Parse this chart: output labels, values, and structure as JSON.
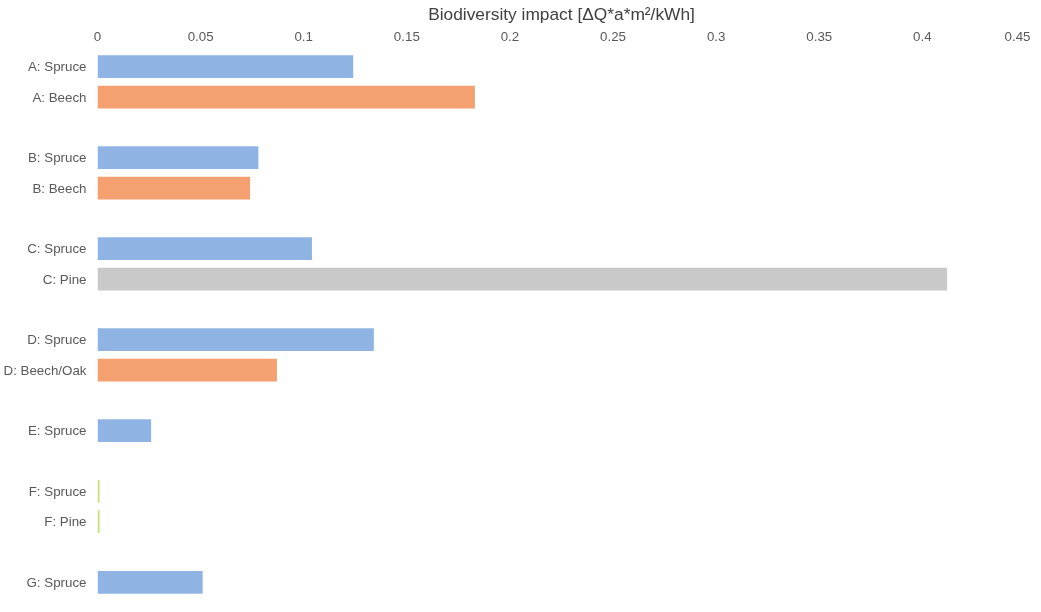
{
  "chart_data": {
    "type": "bar",
    "orientation": "horizontal",
    "xlabel": "Biodiversity impact [ΔQ*a*m²/kWh]",
    "categories": [
      "A: Spruce",
      "A: Beech",
      null,
      "B: Spruce",
      "B: Beech",
      null,
      "C: Spruce",
      "C: Pine",
      null,
      "D: Spruce",
      "D: Beech/Oak",
      null,
      "E: Spruce",
      null,
      "F: Spruce",
      "F: Pine",
      null,
      "G: Spruce"
    ],
    "values": [
      0.124,
      0.183,
      null,
      0.078,
      0.074,
      null,
      0.104,
      0.412,
      null,
      0.134,
      0.087,
      null,
      0.026,
      null,
      0.001,
      0.001,
      null,
      0.051
    ],
    "colors": [
      "#8fb4e3",
      "#f4a070",
      null,
      "#8fb4e3",
      "#f4a070",
      null,
      "#8fb4e3",
      "#c9c9c9",
      null,
      "#8fb4e3",
      "#f4a070",
      null,
      "#8fb4e3",
      null,
      "#c5e07a",
      "#c5e07a",
      null,
      "#8fb4e3"
    ],
    "xlim": [
      0,
      0.45
    ],
    "xticks": [
      0,
      0.05,
      0.1,
      0.15,
      0.2,
      0.25,
      0.3,
      0.35,
      0.4,
      0.45
    ],
    "grid": false
  }
}
